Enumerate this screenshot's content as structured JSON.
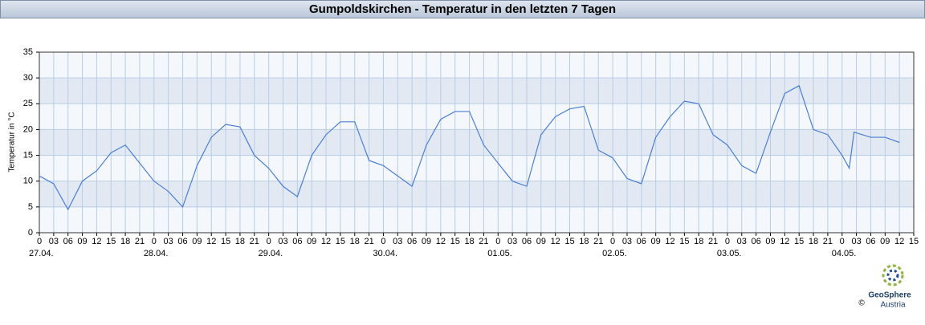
{
  "chart_data": {
    "type": "line",
    "title": "Gumpoldskirchen - Temperatur in den letzten 7 Tagen",
    "y_label": "Temperatur in °C",
    "color": "#4a7fd8",
    "x": [
      0,
      3,
      6,
      9,
      12,
      15,
      18,
      21,
      24,
      27,
      30,
      33,
      36,
      39,
      42,
      45,
      48,
      51,
      54,
      57,
      60,
      63,
      66,
      69,
      72,
      75,
      78,
      81,
      84,
      87,
      90,
      93,
      96,
      99,
      102,
      105,
      108,
      111,
      114,
      117,
      120,
      123,
      126,
      129,
      132,
      135,
      138,
      141,
      144,
      147,
      150,
      153,
      156,
      159,
      162,
      165,
      168,
      169.5,
      170.5,
      174,
      177,
      180
    ],
    "values": [
      11,
      9.5,
      4.5,
      10,
      12,
      15.5,
      17,
      13.5,
      10,
      8,
      5,
      13,
      18.5,
      21,
      20.5,
      15,
      12.5,
      9,
      7,
      15,
      19,
      21.5,
      21.5,
      14,
      13,
      11,
      9,
      17,
      22,
      23.5,
      23.5,
      17,
      13.5,
      10,
      9,
      19,
      22.5,
      24,
      24.5,
      16,
      14.5,
      10.5,
      9.5,
      18.5,
      22.5,
      25.5,
      25,
      19,
      17,
      13,
      11.5,
      19.5,
      27,
      28.5,
      20,
      19,
      15,
      12.5,
      19.5,
      18.5,
      18.5,
      17.5
    ],
    "xlim": [
      0,
      183
    ],
    "ylim": [
      0,
      35
    ],
    "yticks": [
      0,
      5,
      10,
      15,
      20,
      25,
      30,
      35
    ],
    "xticks": [
      0,
      {
        "value": 3,
        "label": "03"
      },
      {
        "value": 6,
        "label": "06"
      },
      {
        "value": 9,
        "label": "09"
      },
      12,
      15,
      18,
      21,
      {
        "value": 24,
        "label": "0"
      },
      {
        "value": 27,
        "label": "03"
      },
      {
        "value": 30,
        "label": "06"
      },
      {
        "value": 33,
        "label": "09"
      },
      {
        "value": 36,
        "label": "12"
      },
      {
        "value": 39,
        "label": "15"
      },
      {
        "value": 42,
        "label": "18"
      },
      {
        "value": 45,
        "label": "21"
      },
      {
        "value": 48,
        "label": "0"
      },
      {
        "value": 51,
        "label": "03"
      },
      {
        "value": 54,
        "label": "06"
      },
      {
        "value": 57,
        "label": "09"
      },
      {
        "value": 60,
        "label": "12"
      },
      {
        "value": 63,
        "label": "15"
      },
      {
        "value": 66,
        "label": "18"
      },
      {
        "value": 69,
        "label": "21"
      },
      {
        "value": 72,
        "label": "0"
      },
      {
        "value": 75,
        "label": "03"
      },
      {
        "value": 78,
        "label": "06"
      },
      {
        "value": 81,
        "label": "09"
      },
      {
        "value": 84,
        "label": "12"
      },
      {
        "value": 87,
        "label": "15"
      },
      {
        "value": 90,
        "label": "18"
      },
      {
        "value": 93,
        "label": "21"
      },
      {
        "value": 96,
        "label": "0"
      },
      {
        "value": 99,
        "label": "03"
      },
      {
        "value": 102,
        "label": "06"
      },
      {
        "value": 105,
        "label": "09"
      },
      {
        "value": 108,
        "label": "12"
      },
      {
        "value": 111,
        "label": "15"
      },
      {
        "value": 114,
        "label": "18"
      },
      {
        "value": 117,
        "label": "21"
      },
      {
        "value": 120,
        "label": "0"
      },
      {
        "value": 123,
        "label": "03"
      },
      {
        "value": 126,
        "label": "06"
      },
      {
        "value": 129,
        "label": "09"
      },
      {
        "value": 132,
        "label": "12"
      },
      {
        "value": 135,
        "label": "15"
      },
      {
        "value": 138,
        "label": "18"
      },
      {
        "value": 141,
        "label": "21"
      },
      {
        "value": 144,
        "label": "0"
      },
      {
        "value": 147,
        "label": "03"
      },
      {
        "value": 150,
        "label": "06"
      },
      {
        "value": 153,
        "label": "09"
      },
      {
        "value": 156,
        "label": "12"
      },
      {
        "value": 159,
        "label": "15"
      },
      {
        "value": 162,
        "label": "18"
      },
      {
        "value": 165,
        "label": "21"
      },
      {
        "value": 168,
        "label": "0"
      },
      {
        "value": 171,
        "label": "03"
      },
      {
        "value": 174,
        "label": "06"
      },
      {
        "value": 177,
        "label": "09"
      },
      {
        "value": 180,
        "label": "12"
      },
      {
        "value": 183,
        "label": "15"
      }
    ],
    "date_labels": [
      {
        "value": 0,
        "label": "27.04."
      },
      {
        "value": 24,
        "label": "28.04."
      },
      {
        "value": 48,
        "label": "29.04."
      },
      {
        "value": 72,
        "label": "30.04."
      },
      {
        "value": 96,
        "label": "01.05."
      },
      {
        "value": 120,
        "label": "02.05."
      },
      {
        "value": 144,
        "label": "03.05."
      },
      {
        "value": 168,
        "label": "04.05."
      }
    ],
    "grid": true
  },
  "logo": {
    "name": "GeoSphere",
    "sub": "Austria",
    "copyright": "©"
  }
}
